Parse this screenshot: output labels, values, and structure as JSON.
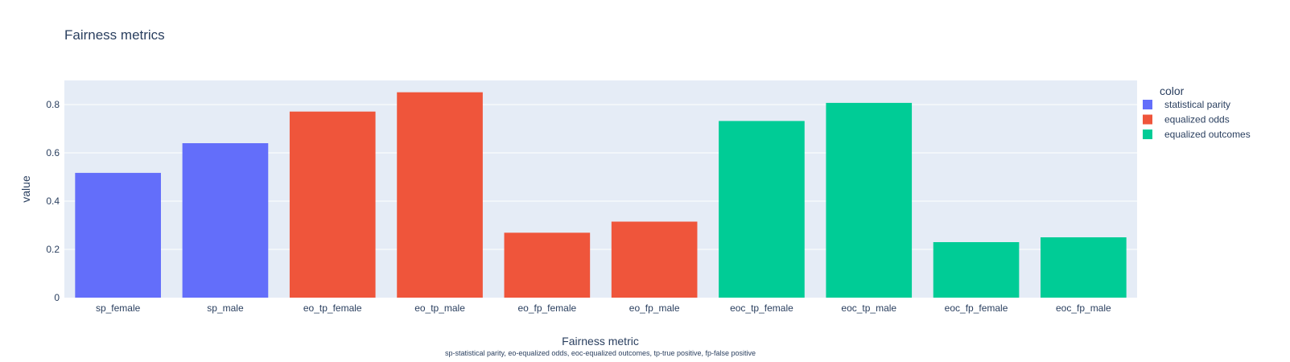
{
  "chart_data": {
    "type": "bar",
    "title": "Fairness metrics",
    "xlabel": "Fairness metric",
    "xlabel_note": "sp-statistical parity, eo-equalized odds, eoc-equalized outcomes, tp-true positive, fp-false positive",
    "ylabel": "value",
    "ylim": [
      0,
      0.9
    ],
    "yticks": [
      0,
      0.2,
      0.4,
      0.6,
      0.8
    ],
    "ytick_labels": [
      "0",
      "0.2",
      "0.4",
      "0.6",
      "0.8"
    ],
    "grid": true,
    "legend_title": "color",
    "legend_position": "right",
    "categories": [
      "sp_female",
      "sp_male",
      "eo_tp_female",
      "eo_tp_male",
      "eo_fp_female",
      "eo_fp_male",
      "eoc_tp_female",
      "eoc_tp_male",
      "eoc_fp_female",
      "eoc_fp_male"
    ],
    "series": [
      {
        "name": "statistical parity",
        "color": "#636efa",
        "values": [
          0.517,
          0.64,
          null,
          null,
          null,
          null,
          null,
          null,
          null,
          null
        ]
      },
      {
        "name": "equalized odds",
        "color": "#ef553b",
        "values": [
          null,
          null,
          0.771,
          0.851,
          0.269,
          0.315,
          null,
          null,
          null,
          null
        ]
      },
      {
        "name": "equalized outcomes",
        "color": "#00cc96",
        "values": [
          null,
          null,
          null,
          null,
          null,
          null,
          0.732,
          0.807,
          0.23,
          0.25
        ]
      }
    ]
  },
  "colors": {
    "plot_bg": "#e5ecf6",
    "grid": "#ffffff",
    "text": "#2a3f5f"
  }
}
